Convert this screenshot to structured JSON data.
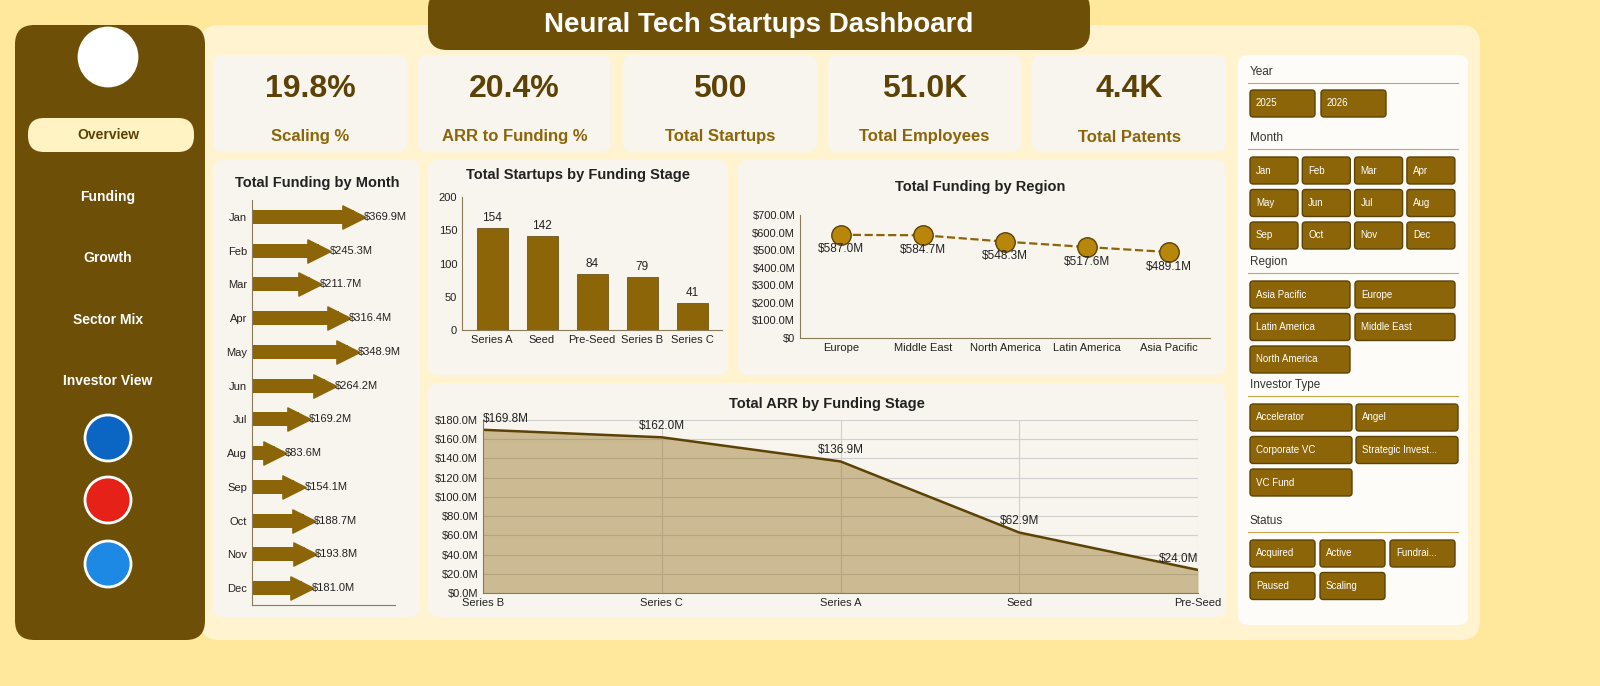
{
  "title": "Neural Tech Startups Dashboard",
  "navigation": {
    "active": "Overview",
    "items": [
      "Overview",
      "Funding",
      "Growth",
      "Sector Mix",
      "Investor View"
    ]
  },
  "kpis": [
    {
      "value": "19.8%",
      "label": "Scaling %"
    },
    {
      "value": "20.4%",
      "label": "ARR to Funding %"
    },
    {
      "value": "500",
      "label": "Total Startups"
    },
    {
      "value": "51.0K",
      "label": "Total Employees"
    },
    {
      "value": "4.4K",
      "label": "Total Patents"
    }
  ],
  "slicers": [
    {
      "title": "Year",
      "options": [
        "2025",
        "2026"
      ]
    },
    {
      "title": "Month",
      "options": [
        "Jan",
        "Feb",
        "Mar",
        "Apr",
        "May",
        "Jun",
        "Jul",
        "Aug",
        "Sep",
        "Oct",
        "Nov",
        "Dec"
      ]
    },
    {
      "title": "Region",
      "options": [
        "Asia Pacific",
        "Europe",
        "Latin America",
        "Middle East",
        "North America"
      ]
    },
    {
      "title": "Investor Type",
      "options": [
        "Accelerator",
        "Angel",
        "Corporate VC",
        "Strategic Invest...",
        "VC Fund"
      ]
    },
    {
      "title": "Status",
      "options": [
        "Acquired",
        "Active",
        "Fundrai...",
        "Paused",
        "Scaling"
      ]
    }
  ],
  "chart_data": [
    {
      "type": "bar",
      "title": "Total Funding by Month",
      "orientation": "horizontal",
      "categories": [
        "Jan",
        "Feb",
        "Mar",
        "Apr",
        "May",
        "Jun",
        "Jul",
        "Aug",
        "Sep",
        "Oct",
        "Nov",
        "Dec"
      ],
      "values": [
        369.9,
        245.3,
        211.7,
        316.4,
        348.9,
        264.2,
        169.2,
        83.6,
        154.1,
        188.7,
        193.8,
        181.0
      ],
      "value_labels": [
        "$369.9M",
        "$245.3M",
        "$211.7M",
        "$316.4M",
        "$348.9M",
        "$264.2M",
        "$169.2M",
        "$83.6M",
        "$154.1M",
        "$188.7M",
        "$193.8M",
        "$181.0M"
      ],
      "color": "#8B6508",
      "xlim": [
        0,
        520
      ],
      "tick_labels": "y",
      "data_labels": true
    },
    {
      "type": "bar",
      "title": "Total Startups by Funding Stage",
      "categories": [
        "Series A",
        "Seed",
        "Pre-Seed",
        "Series B",
        "Series C"
      ],
      "values": [
        154,
        142,
        84,
        79,
        41
      ],
      "color": "#8B6508",
      "ylim": [
        0,
        200
      ],
      "yticks": [
        0,
        50,
        100,
        150,
        200
      ],
      "data_labels": true
    },
    {
      "type": "line",
      "title": "Total Funding by Region",
      "categories": [
        "Europe",
        "Middle East",
        "North America",
        "Latin America",
        "Asia Pacific"
      ],
      "values": [
        587.0,
        584.7,
        548.3,
        517.6,
        489.1
      ],
      "value_labels": [
        "$587.0M",
        "$584.7M",
        "$548.3M",
        "$517.6M",
        "$489.1M"
      ],
      "color": "#8B6508",
      "line_style": "dashed",
      "marker": "o",
      "ylim": [
        0,
        700
      ],
      "yticks": [
        {
          "value": 0,
          "label": "$0"
        },
        {
          "value": 100,
          "label": "$100.0M"
        },
        {
          "value": 200,
          "label": "$200.0M"
        },
        {
          "value": 300,
          "label": "$300.0M"
        },
        {
          "value": 400,
          "label": "$400.0M"
        },
        {
          "value": 500,
          "label": "$500.0M"
        },
        {
          "value": 600,
          "label": "$600.0M"
        },
        {
          "value": 700,
          "label": "$700.0M"
        }
      ],
      "data_labels": true
    },
    {
      "type": "area",
      "title": "Total ARR by Funding Stage",
      "categories": [
        "Series B",
        "Series C",
        "Series A",
        "Seed",
        "Pre-Seed"
      ],
      "values": [
        169.8,
        162.0,
        136.9,
        62.9,
        24.0
      ],
      "value_labels": [
        "$169.8M",
        "$162.0M",
        "$136.9M",
        "$62.9M",
        "$24.0M"
      ],
      "color": "#8B6508",
      "ylim": [
        0,
        180
      ],
      "yticks": [
        {
          "value": 0,
          "label": "$0.0M"
        },
        {
          "value": 20,
          "label": "$20.0M"
        },
        {
          "value": 40,
          "label": "$40.0M"
        },
        {
          "value": 60,
          "label": "$60.0M"
        },
        {
          "value": 80,
          "label": "$80.0M"
        },
        {
          "value": 100,
          "label": "$100.0M"
        },
        {
          "value": 120,
          "label": "$120.0M"
        },
        {
          "value": 140,
          "label": "$140.0M"
        },
        {
          "value": 160,
          "label": "$160.0M"
        },
        {
          "value": 180,
          "label": "$180.0M"
        }
      ],
      "grid": true,
      "data_labels": true
    }
  ]
}
